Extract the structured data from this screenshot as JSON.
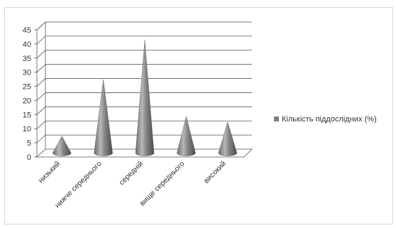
{
  "chart_data": {
    "type": "bar",
    "subtype": "3d-cone",
    "categories": [
      "низький",
      "нижче середнього",
      "середній",
      "вище середнього",
      "високий"
    ],
    "series": [
      {
        "name": "Кількість піддослідних (%)",
        "values": [
          6,
          26,
          40,
          13,
          11
        ],
        "color": "#7f7f7f"
      }
    ],
    "ylim": [
      0,
      45
    ],
    "yticks": [
      0,
      5,
      10,
      15,
      20,
      25,
      30,
      35,
      40,
      45
    ],
    "grid": true,
    "legend_position": "right"
  }
}
